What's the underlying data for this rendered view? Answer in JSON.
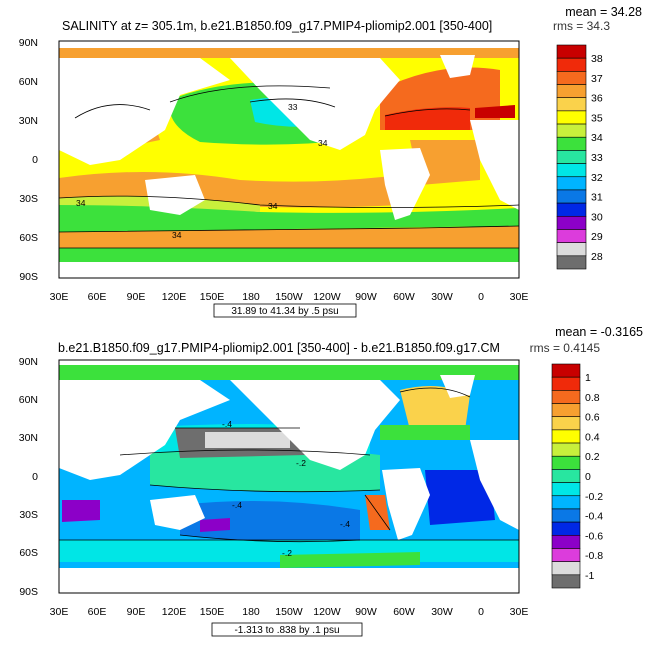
{
  "panel_top": {
    "title": "SALINITY at z= 305.1m, b.e21.B1850.f09_g17.PMIP4-pliomip2.001 [350-400]",
    "mean_label": "mean = 34.28",
    "rms_label": "rms = 34.3",
    "range_label": "31.89 to 41.34 by .5 psu",
    "contour_labels": [
      "33",
      "34",
      "34",
      "34",
      "34"
    ],
    "colorbar": {
      "labels": [
        "38",
        "37",
        "36",
        "35",
        "34",
        "33",
        "32",
        "31",
        "30",
        "29",
        "28"
      ],
      "colors": [
        "#c80000",
        "#f02a0a",
        "#f56a1e",
        "#f7a030",
        "#fad24b",
        "#ffff00",
        "#c8f03c",
        "#3ce13c",
        "#28e6a0",
        "#00e6e6",
        "#00b4ff",
        "#0a78e6",
        "#0028e6",
        "#8c00c8",
        "#dc3cdc",
        "#dcdcdc",
        "#6e6e6e"
      ]
    }
  },
  "panel_bottom": {
    "title": "b.e21.B1850.f09_g17.PMIP4-pliomip2.001 [350-400] - b.e21.B1850.f09.g17.CM",
    "mean_label": "mean = -0.3165",
    "rms_label": "rms = 0.4145",
    "range_label": "-1.313 to .838 by .1 psu",
    "contour_labels": [
      "-.4",
      "-.2",
      "-.4",
      "-.4",
      "-.2"
    ],
    "colorbar": {
      "labels": [
        "1",
        "0.8",
        "0.6",
        "0.4",
        "0.2",
        "0",
        "-0.2",
        "-0.4",
        "-0.6",
        "-0.8",
        "-1"
      ],
      "colors": [
        "#c80000",
        "#f02a0a",
        "#f56a1e",
        "#f7a030",
        "#fad24b",
        "#ffff00",
        "#c8f03c",
        "#3ce13c",
        "#28e6a0",
        "#00e6e6",
        "#00b4ff",
        "#0a78e6",
        "#0028e6",
        "#8c00c8",
        "#dc3cdc",
        "#dcdcdc",
        "#6e6e6e"
      ]
    }
  },
  "axes": {
    "lat_labels": [
      "90N",
      "60N",
      "30N",
      "0",
      "30S",
      "60S",
      "90S"
    ],
    "lon_labels": [
      "30E",
      "60E",
      "90E",
      "120E",
      "150E",
      "180",
      "150W",
      "120W",
      "90W",
      "60W",
      "30W",
      "0",
      "30E"
    ]
  }
}
